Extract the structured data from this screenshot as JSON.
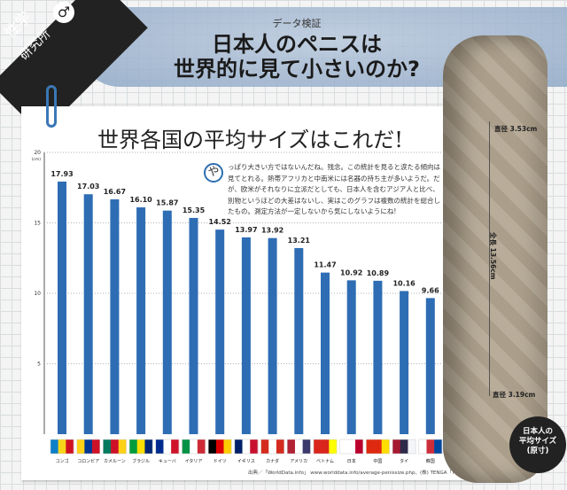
{
  "corner": {
    "line1": "性学",
    "line2": "研究所",
    "icon": "male-symbol-icon"
  },
  "header": {
    "subtitle": "データ検証",
    "title_line1": "日本人のペニスは",
    "title_line2": "世界的に見て小さいのか?"
  },
  "note": {
    "initial": "や",
    "text": "っぱり大きい方ではないんだね。残念。この統計を見ると涙たる傾向は見てとれる。熱帯アフリカと中南米には名器の持ち主が多いようだ。だが、欧米がそれなりに立派だとしても、日本人を含むアジア人と比べ、別物というほどの大差はないし、実はこのグラフは複数の統計を総合したもの。測定方法が一定しないから気にしないようにね!"
  },
  "source": "出典／「WorldData.info」 www.worlddata.info/average-penissize.php、(株) TENGA「TENGA FITTING 確認サイト」より",
  "object": {
    "top_diameter": "直径 3.53cm",
    "length": "全長 13.56cm",
    "bottom_diameter": "直径 3.19cm",
    "badge_line1": "日本人の",
    "badge_line2": "平均サイズ",
    "badge_line3": "(原寸)"
  },
  "chart_data": {
    "type": "bar",
    "title": "世界各国の平均サイズはこれだ!",
    "ylabel": "(cm)",
    "ylim": [
      0,
      20
    ],
    "yticks": [
      5,
      10,
      15,
      20
    ],
    "grid": true,
    "bar_color": "#2e6db4",
    "categories": [
      "コンゴ",
      "コロンビア",
      "カメルーン",
      "ブラジル",
      "キューバ",
      "イタリア",
      "ドイツ",
      "イギリス",
      "カナダ",
      "アメリカ",
      "ベトナム",
      "日本",
      "中国",
      "タイ",
      "韓国"
    ],
    "values": [
      17.93,
      17.03,
      16.67,
      16.1,
      15.87,
      15.35,
      14.52,
      13.97,
      13.92,
      13.21,
      11.47,
      10.92,
      10.89,
      10.16,
      9.66
    ],
    "data_labels": [
      "17.93",
      "17.03",
      "16.67",
      "16.10",
      "15.87",
      "15.35",
      "14.52",
      "13.97",
      "13.92",
      "13.21",
      "11.47",
      "10.92",
      "10.89",
      "10.16",
      "9.66"
    ]
  }
}
